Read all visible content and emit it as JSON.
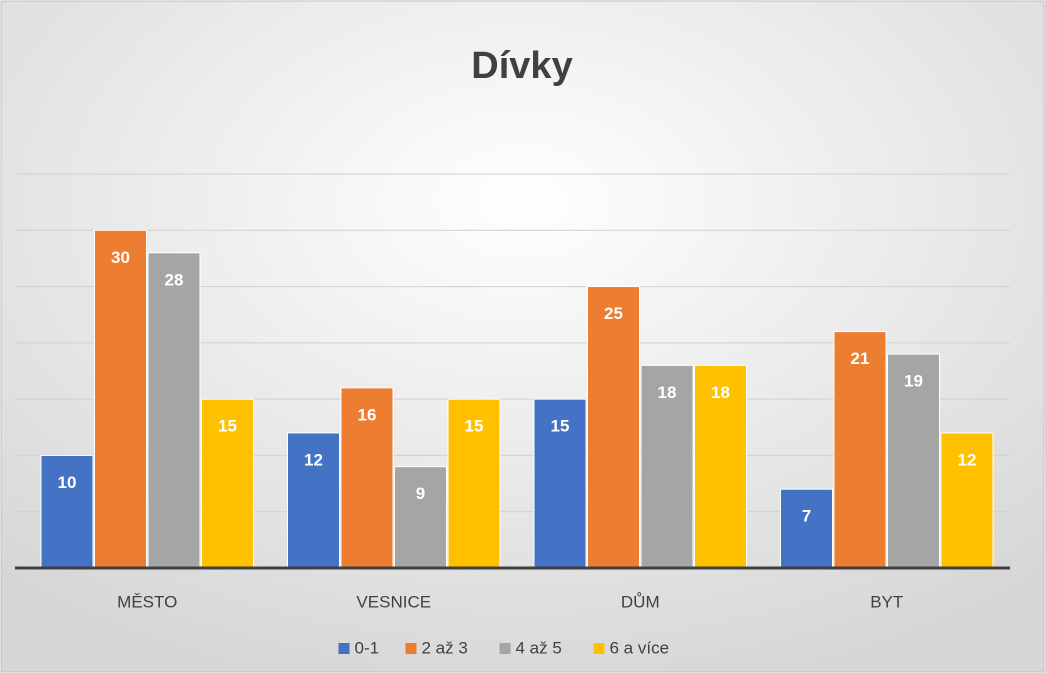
{
  "chart_data": {
    "type": "bar",
    "title": "Dívky",
    "categories": [
      "MĚSTO",
      "VESNICE",
      "DŮM",
      "BYT"
    ],
    "series": [
      {
        "name": "0-1",
        "color": "#4472c4",
        "values": [
          10,
          12,
          15,
          7
        ]
      },
      {
        "name": "2 až 3",
        "color": "#ed7d31",
        "values": [
          30,
          16,
          25,
          21
        ]
      },
      {
        "name": "4 až 5",
        "color": "#a5a5a5",
        "values": [
          28,
          9,
          18,
          19
        ]
      },
      {
        "name": "6 a více",
        "color": "#ffc000",
        "values": [
          15,
          15,
          18,
          12
        ]
      }
    ],
    "ylim": [
      0,
      35
    ],
    "yticks": [
      0,
      5,
      10,
      15,
      20,
      25,
      30,
      35
    ],
    "grid": true,
    "legend": "bottom"
  }
}
